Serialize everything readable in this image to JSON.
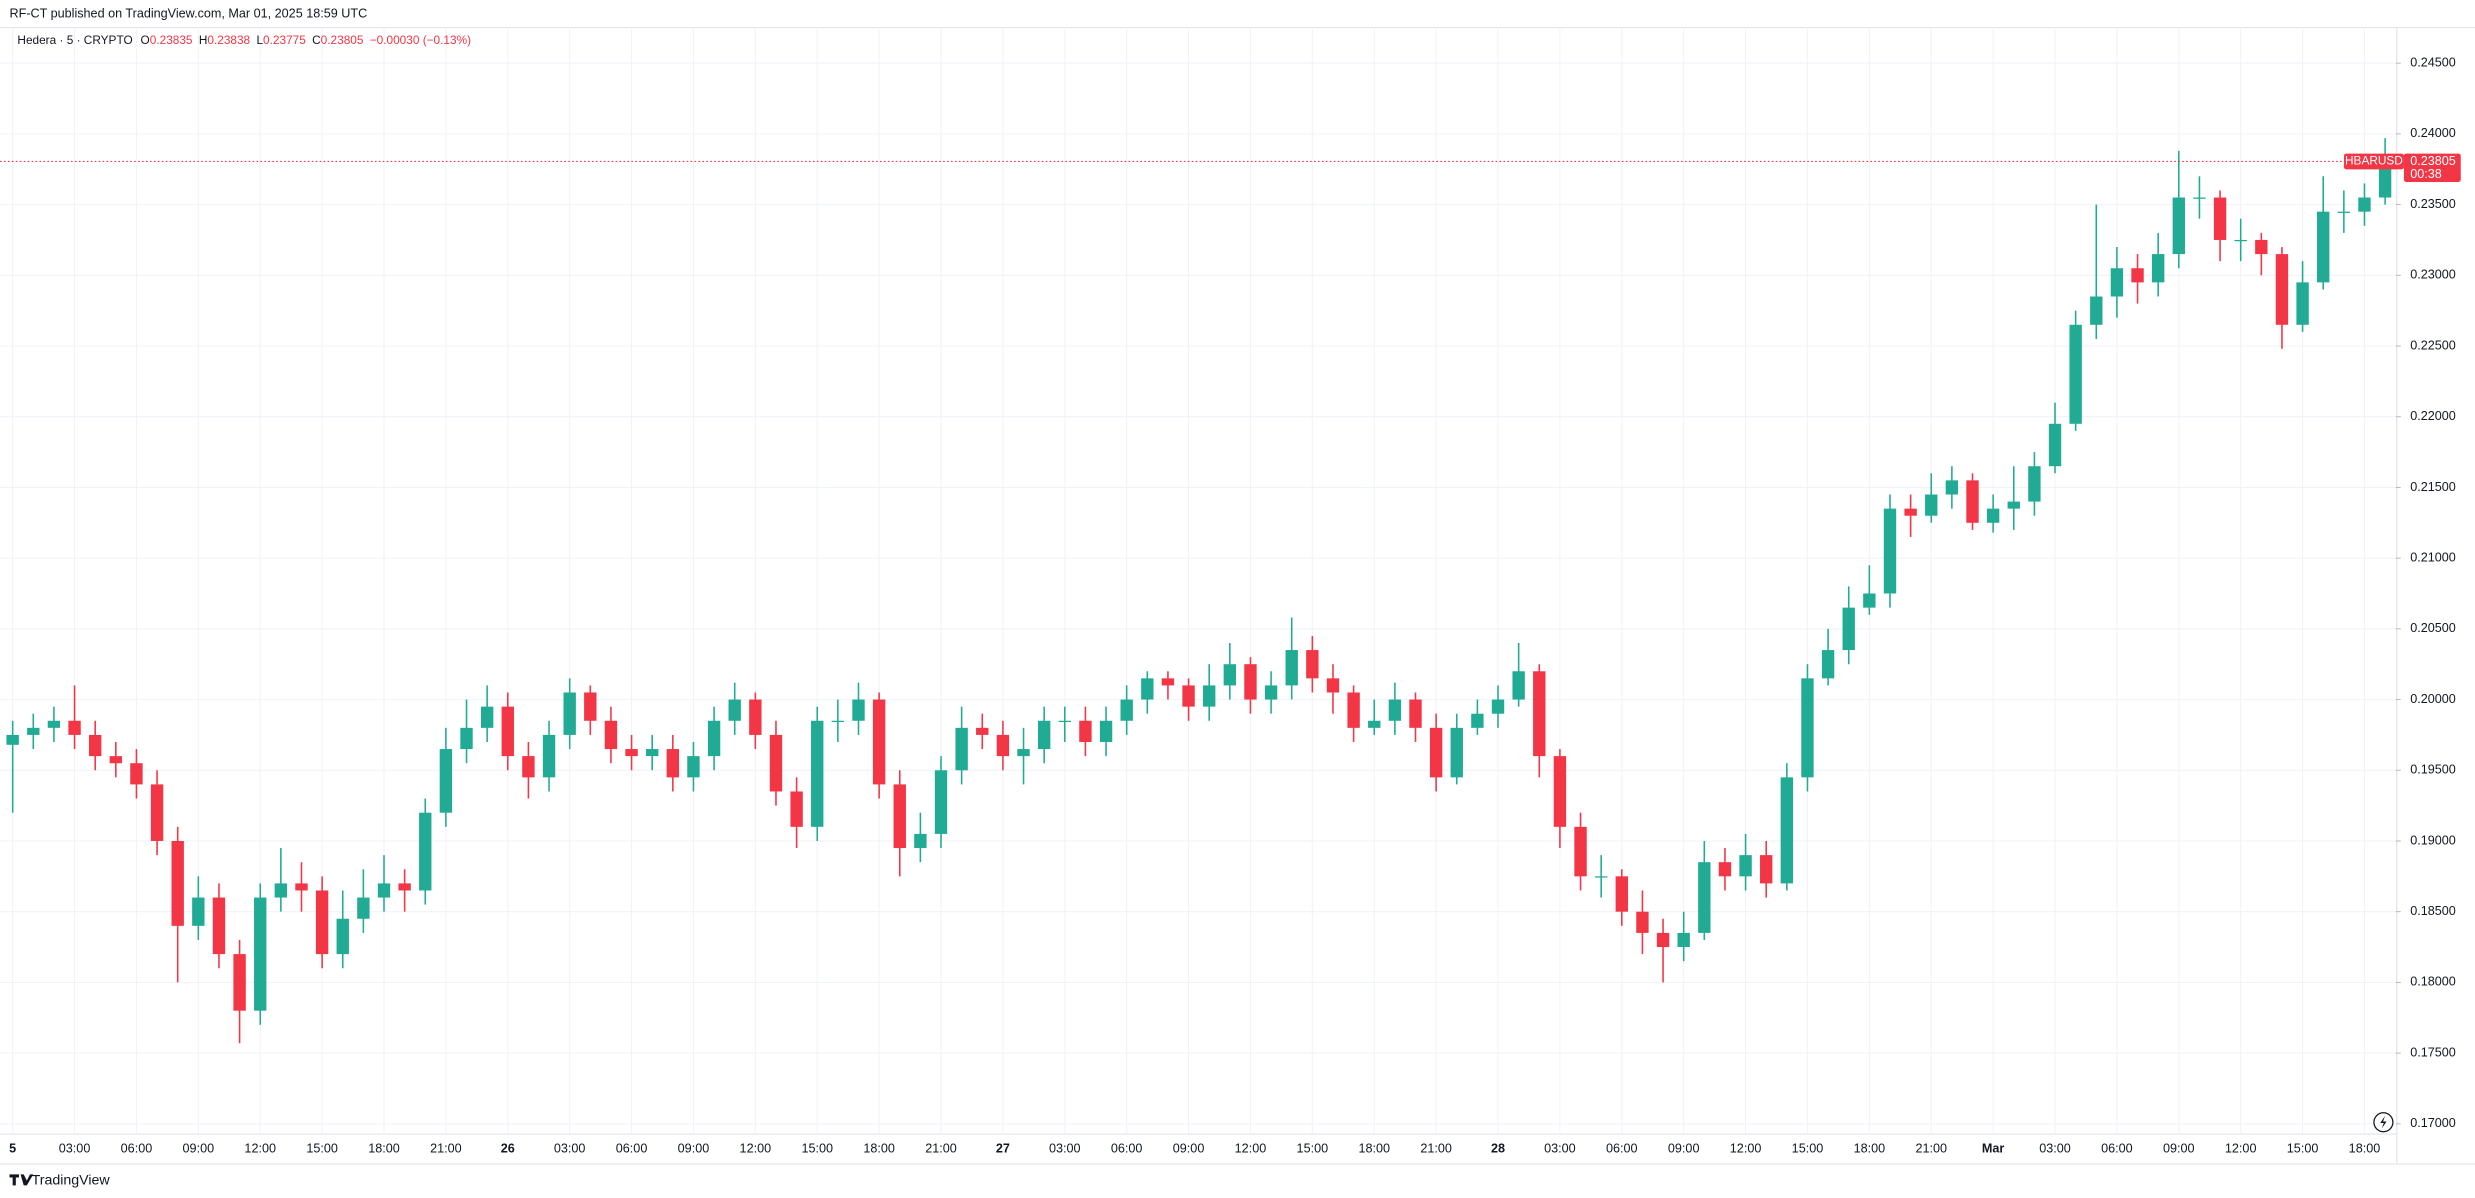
{
  "header": {
    "published": "RF-CT published on TradingView.com, Mar 01, 2025 18:59 UTC",
    "legend": {
      "symbol": "Hedera · 5 · CRYPTO",
      "items": [
        {
          "key": "O",
          "value": "0.23835"
        },
        {
          "key": "H",
          "value": "0.23838"
        },
        {
          "key": "L",
          "value": "0.23775"
        },
        {
          "key": "C",
          "value": "0.23805"
        }
      ],
      "change": "−0.00030 (−0.13%)"
    }
  },
  "footer": {
    "brand": "TradingView"
  },
  "chart_data": {
    "type": "candlestick",
    "categories": [
      "5",
      null,
      null,
      "03:00",
      null,
      null,
      "06:00",
      null,
      null,
      "09:00",
      null,
      null,
      "12:00",
      null,
      null,
      "15:00",
      null,
      null,
      "18:00",
      null,
      null,
      "21:00",
      null,
      null,
      "26",
      null,
      null,
      "03:00",
      null,
      null,
      "06:00",
      null,
      null,
      "09:00",
      null,
      null,
      "12:00",
      null,
      null,
      "15:00",
      null,
      null,
      "18:00",
      null,
      null,
      "21:00",
      null,
      null,
      "27",
      null,
      null,
      "03:00",
      null,
      null,
      "06:00",
      null,
      null,
      "09:00",
      null,
      null,
      "12:00",
      null,
      null,
      "15:00",
      null,
      null,
      "18:00",
      null,
      null,
      "21:00",
      null,
      null,
      "28",
      null,
      null,
      "03:00",
      null,
      null,
      "06:00",
      null,
      null,
      "09:00",
      null,
      null,
      "12:00",
      null,
      null,
      "15:00",
      null,
      null,
      "18:00",
      null,
      null,
      "21:00",
      null,
      null,
      "Mar",
      null,
      null,
      "03:00",
      null,
      null,
      "06:00",
      null,
      null,
      "09:00",
      null,
      null,
      "12:00",
      null,
      null,
      "15:00",
      null,
      null,
      "18:00",
      null
    ],
    "open": [
      0.1968,
      0.1975,
      0.198,
      0.1985,
      0.1975,
      0.196,
      0.1955,
      0.194,
      0.19,
      0.184,
      0.186,
      0.182,
      0.178,
      0.186,
      0.187,
      0.1865,
      0.182,
      0.1845,
      0.186,
      0.187,
      0.1865,
      0.192,
      0.1965,
      0.198,
      0.1995,
      0.196,
      0.1945,
      0.1975,
      0.2005,
      0.1985,
      0.1965,
      0.196,
      0.1965,
      0.1945,
      0.196,
      0.1985,
      0.2,
      0.1975,
      0.1935,
      0.191,
      0.1985,
      0.1985,
      0.2,
      0.194,
      0.1895,
      0.1905,
      0.195,
      0.198,
      0.1975,
      0.196,
      0.1965,
      0.1985,
      0.1985,
      0.197,
      0.1985,
      0.2,
      0.2015,
      0.201,
      0.1995,
      0.201,
      0.2025,
      0.2,
      0.201,
      0.2035,
      0.2015,
      0.2005,
      0.198,
      0.1985,
      0.2,
      0.198,
      0.1945,
      0.198,
      0.199,
      0.2,
      0.202,
      0.196,
      0.191,
      0.1875,
      0.1875,
      0.185,
      0.1835,
      0.1825,
      0.1835,
      0.1885,
      0.1875,
      0.189,
      0.187,
      0.1945,
      0.2015,
      0.2035,
      0.2065,
      0.2075,
      0.2135,
      0.213,
      0.2145,
      0.2155,
      0.2125,
      0.2135,
      0.214,
      0.2165,
      0.2195,
      0.2265,
      0.2285,
      0.2305,
      0.2295,
      0.2315,
      0.2355,
      0.2355,
      0.2325,
      0.2325,
      0.2315,
      0.2265,
      0.2295,
      0.2345,
      0.2345,
      0.2355
    ],
    "high": [
      0.1985,
      0.199,
      0.1995,
      0.201,
      0.1985,
      0.197,
      0.1965,
      0.195,
      0.191,
      0.1875,
      0.187,
      0.183,
      0.187,
      0.1895,
      0.1885,
      0.1875,
      0.1865,
      0.188,
      0.189,
      0.188,
      0.193,
      0.198,
      0.2,
      0.201,
      0.2005,
      0.197,
      0.1985,
      0.2015,
      0.201,
      0.1995,
      0.1975,
      0.1975,
      0.1975,
      0.197,
      0.1995,
      0.2012,
      0.2005,
      0.1985,
      0.1945,
      0.1995,
      0.2,
      0.2012,
      0.2005,
      0.195,
      0.192,
      0.196,
      0.1995,
      0.199,
      0.1985,
      0.198,
      0.1995,
      0.1995,
      0.1995,
      0.1995,
      0.201,
      0.202,
      0.202,
      0.2015,
      0.2025,
      0.204,
      0.203,
      0.202,
      0.2058,
      0.2045,
      0.2025,
      0.201,
      0.2,
      0.2012,
      0.2005,
      0.199,
      0.199,
      0.2,
      0.201,
      0.204,
      0.2025,
      0.1965,
      0.192,
      0.189,
      0.188,
      0.1865,
      0.1845,
      0.185,
      0.19,
      0.1895,
      0.1905,
      0.19,
      0.1955,
      0.2025,
      0.205,
      0.208,
      0.2095,
      0.2145,
      0.2145,
      0.216,
      0.2165,
      0.216,
      0.2145,
      0.2165,
      0.2175,
      0.221,
      0.2275,
      0.235,
      0.232,
      0.2315,
      0.233,
      0.2388,
      0.237,
      0.236,
      0.234,
      0.233,
      0.232,
      0.231,
      0.237,
      0.236,
      0.2365,
      0.2397
    ],
    "low": [
      0.192,
      0.1965,
      0.197,
      0.1965,
      0.195,
      0.1945,
      0.193,
      0.189,
      0.18,
      0.183,
      0.181,
      0.1757,
      0.177,
      0.185,
      0.185,
      0.181,
      0.181,
      0.1835,
      0.185,
      0.185,
      0.1855,
      0.191,
      0.1955,
      0.197,
      0.195,
      0.193,
      0.1935,
      0.1965,
      0.1975,
      0.1955,
      0.195,
      0.195,
      0.1935,
      0.1935,
      0.195,
      0.1975,
      0.1965,
      0.1925,
      0.1895,
      0.19,
      0.197,
      0.1975,
      0.193,
      0.1875,
      0.1885,
      0.1895,
      0.194,
      0.1965,
      0.195,
      0.194,
      0.1955,
      0.197,
      0.196,
      0.196,
      0.1975,
      0.199,
      0.2,
      0.1985,
      0.1985,
      0.2,
      0.199,
      0.199,
      0.2,
      0.2005,
      0.199,
      0.197,
      0.1975,
      0.1975,
      0.197,
      0.1935,
      0.194,
      0.1975,
      0.198,
      0.1995,
      0.1945,
      0.1895,
      0.1865,
      0.186,
      0.184,
      0.182,
      0.18,
      0.1815,
      0.183,
      0.1865,
      0.1865,
      0.186,
      0.1865,
      0.1935,
      0.201,
      0.2025,
      0.206,
      0.2065,
      0.2115,
      0.2125,
      0.2135,
      0.212,
      0.2118,
      0.212,
      0.213,
      0.216,
      0.219,
      0.2255,
      0.227,
      0.228,
      0.2285,
      0.2305,
      0.234,
      0.231,
      0.231,
      0.23,
      0.2248,
      0.226,
      0.229,
      0.233,
      0.2335,
      0.235
    ],
    "close": [
      0.1975,
      0.198,
      0.1985,
      0.1975,
      0.196,
      0.1955,
      0.194,
      0.19,
      0.184,
      0.186,
      0.182,
      0.178,
      0.186,
      0.187,
      0.1865,
      0.182,
      0.1845,
      0.186,
      0.187,
      0.1865,
      0.192,
      0.1965,
      0.198,
      0.1995,
      0.196,
      0.1945,
      0.1975,
      0.2005,
      0.1985,
      0.1965,
      0.196,
      0.1965,
      0.1945,
      0.196,
      0.1985,
      0.2,
      0.1975,
      0.1935,
      0.191,
      0.1985,
      0.1985,
      0.2,
      0.194,
      0.1895,
      0.1905,
      0.195,
      0.198,
      0.1975,
      0.196,
      0.1965,
      0.1985,
      0.1985,
      0.197,
      0.1985,
      0.2,
      0.2015,
      0.201,
      0.1995,
      0.201,
      0.2025,
      0.2,
      0.201,
      0.2035,
      0.2015,
      0.2005,
      0.198,
      0.1985,
      0.2,
      0.198,
      0.1945,
      0.198,
      0.199,
      0.2,
      0.202,
      0.196,
      0.191,
      0.1875,
      0.1875,
      0.185,
      0.1835,
      0.1825,
      0.1835,
      0.1885,
      0.1875,
      0.189,
      0.187,
      0.1945,
      0.2015,
      0.2035,
      0.2065,
      0.2075,
      0.2135,
      0.213,
      0.2145,
      0.2155,
      0.2125,
      0.2135,
      0.214,
      0.2165,
      0.2195,
      0.2265,
      0.2285,
      0.2305,
      0.2295,
      0.2315,
      0.2355,
      0.2355,
      0.2325,
      0.2325,
      0.2315,
      0.2265,
      0.2295,
      0.2345,
      0.2345,
      0.2355,
      0.23805
    ],
    "up_color": "#22ab94",
    "down_color": "#f23645",
    "ylim": [
      0.16933,
      0.24757
    ],
    "yticks": [
      {
        "value": 0.17,
        "label": "0.17000"
      },
      {
        "value": 0.175,
        "label": "0.17500"
      },
      {
        "value": 0.18,
        "label": "0.18000"
      },
      {
        "value": 0.185,
        "label": "0.18500"
      },
      {
        "value": 0.19,
        "label": "0.19000"
      },
      {
        "value": 0.195,
        "label": "0.19500"
      },
      {
        "value": 0.2,
        "label": "0.20000"
      },
      {
        "value": 0.205,
        "label": "0.20500"
      },
      {
        "value": 0.21,
        "label": "0.21000"
      },
      {
        "value": 0.215,
        "label": "0.21500"
      },
      {
        "value": 0.22,
        "label": "0.22000"
      },
      {
        "value": 0.225,
        "label": "0.22500"
      },
      {
        "value": 0.23,
        "label": "0.23000"
      },
      {
        "value": 0.235,
        "label": "0.23500"
      },
      {
        "value": 0.24,
        "label": "0.24000"
      },
      {
        "value": 0.245,
        "label": "0.24500"
      }
    ],
    "grid": true,
    "last_price": 0.23805,
    "symbol_tag": "HBARUSD",
    "countdown": "00:38"
  }
}
